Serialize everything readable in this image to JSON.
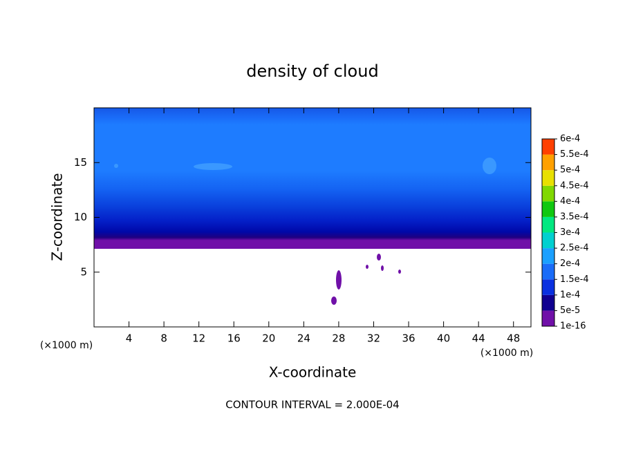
{
  "chart_data": {
    "type": "contour",
    "title": "density of cloud",
    "x_label": "X-coordinate",
    "y_label": "Z-coordinate",
    "x_unit": "(×1000 m)",
    "y_unit": "(×1000 m)",
    "footnote": "CONTOUR INTERVAL = 2.000E-04",
    "xlim": [
      0,
      50
    ],
    "ylim": [
      0,
      20
    ],
    "xticks": [
      4,
      8,
      12,
      16,
      20,
      24,
      28,
      32,
      36,
      40,
      44,
      48
    ],
    "yticks": [
      5,
      10,
      15
    ],
    "colorbar": {
      "levels": [
        {
          "value": 1e-16,
          "label": "1e-16"
        },
        {
          "value": 5e-05,
          "label": "5e-5"
        },
        {
          "value": 0.0001,
          "label": "1e-4"
        },
        {
          "value": 0.00015,
          "label": "1.5e-4"
        },
        {
          "value": 0.0002,
          "label": "2e-4"
        },
        {
          "value": 0.00025,
          "label": "2.5e-4"
        },
        {
          "value": 0.0003,
          "label": "3e-4"
        },
        {
          "value": 0.00035,
          "label": "3.5e-4"
        },
        {
          "value": 0.0004,
          "label": "4e-4"
        },
        {
          "value": 0.00045,
          "label": "4.5e-4"
        },
        {
          "value": 0.0005,
          "label": "5e-4"
        },
        {
          "value": 0.00055,
          "label": "5.5e-4"
        },
        {
          "value": 0.0006,
          "label": "6e-4"
        }
      ],
      "colors": [
        "#7010a8",
        "#100090",
        "#0a30e0",
        "#1a6cf8",
        "#1aa0ff",
        "#00d0d0",
        "#00e880",
        "#10c810",
        "#80d800",
        "#e8e000",
        "#ffa000",
        "#ff4000",
        "#ff0000",
        "#ff8080"
      ]
    }
  }
}
